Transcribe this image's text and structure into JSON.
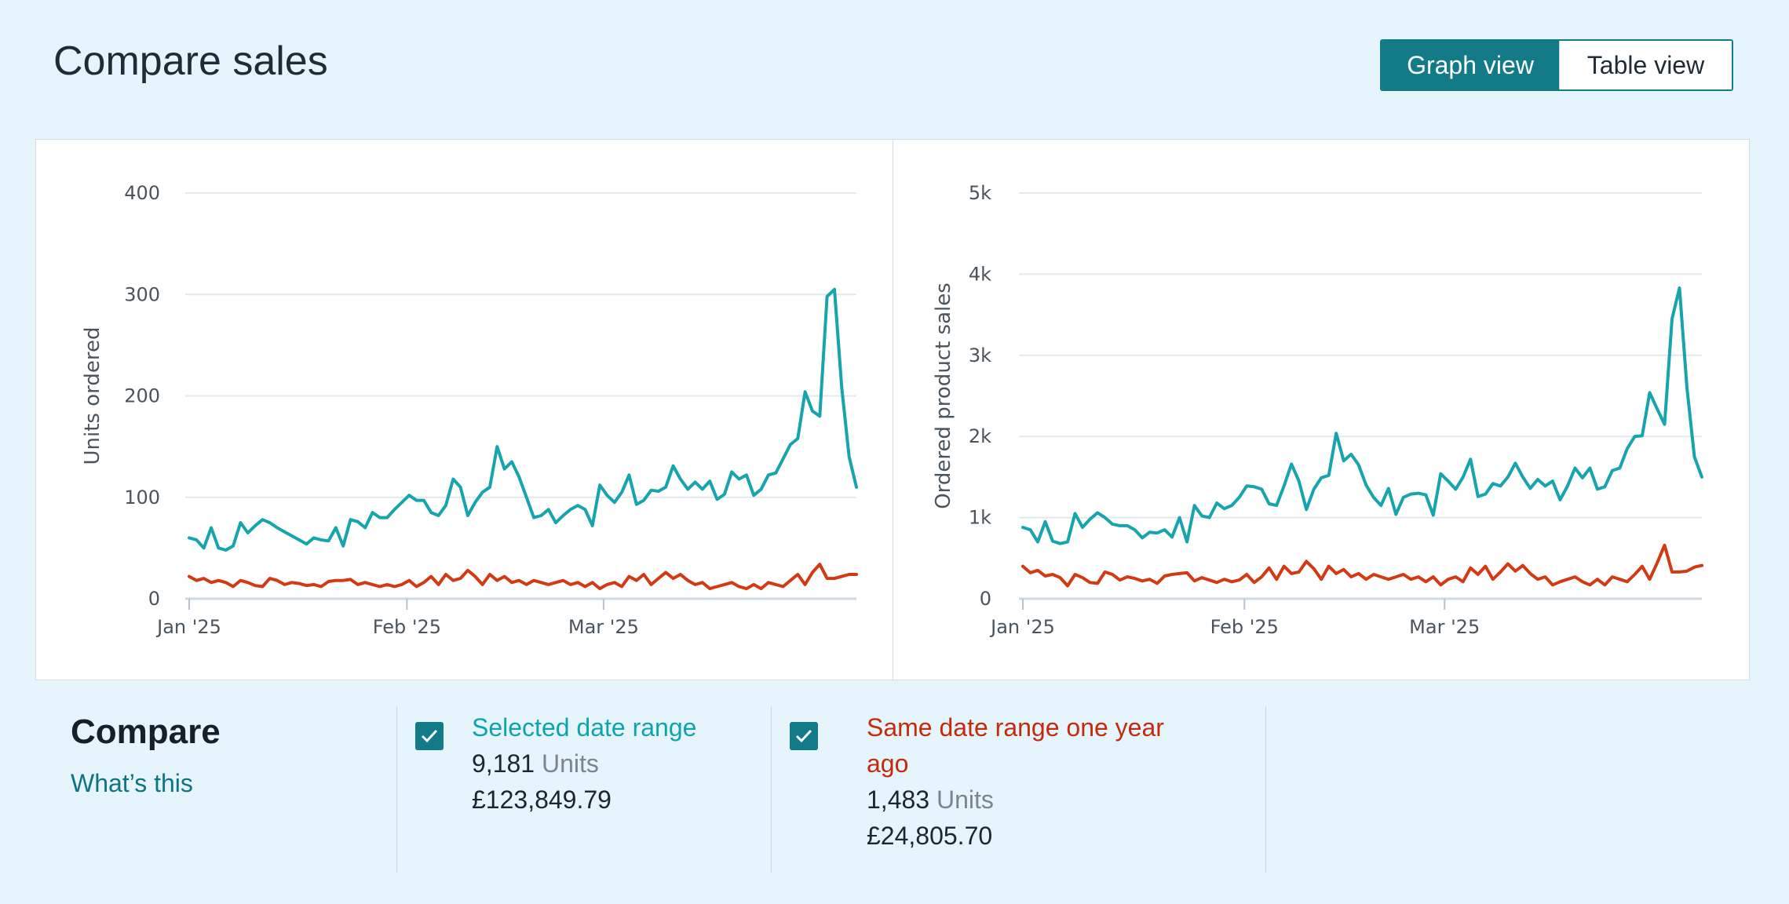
{
  "header": {
    "title": "Compare sales"
  },
  "view_toggle": {
    "graph_label": "Graph view",
    "table_label": "Table view",
    "active": "graph"
  },
  "colors": {
    "selected": "#17a4ad",
    "previous": "#d23a14",
    "accent": "#137a87",
    "background": "#e6f4fb"
  },
  "chart_data": [
    {
      "type": "line",
      "title": "",
      "ylabel": "Units ordered",
      "ylim": [
        0,
        400
      ],
      "y_ticks": [
        0,
        100,
        200,
        300,
        400
      ],
      "y_tick_labels": [
        "0",
        "100",
        "200",
        "300",
        "400"
      ],
      "x_tick_labels": [
        "Jan '25",
        "Feb '25",
        "Mar '25"
      ],
      "x_tick_days": [
        0,
        31,
        59
      ],
      "x_range_days": [
        0,
        95
      ],
      "series": [
        {
          "name": "Selected date range",
          "color": "#17a4ad",
          "values": [
            60,
            58,
            50,
            70,
            50,
            48,
            52,
            75,
            65,
            72,
            78,
            75,
            70,
            66,
            62,
            58,
            54,
            60,
            58,
            57,
            70,
            52,
            78,
            76,
            70,
            85,
            80,
            80,
            88,
            95,
            102,
            97,
            97,
            85,
            82,
            92,
            118,
            110,
            82,
            95,
            105,
            110,
            150,
            128,
            135,
            120,
            100,
            80,
            82,
            88,
            75,
            82,
            88,
            92,
            88,
            72,
            112,
            102,
            95,
            105,
            122,
            93,
            97,
            107,
            106,
            110,
            131,
            118,
            108,
            115,
            108,
            116,
            98,
            103,
            125,
            118,
            122,
            102,
            108,
            122,
            124,
            138,
            152,
            158,
            204,
            185,
            180,
            298,
            305,
            208,
            140,
            110
          ]
        },
        {
          "name": "Same date range one year ago",
          "color": "#d23a14",
          "values": [
            22,
            18,
            20,
            16,
            18,
            16,
            12,
            18,
            16,
            13,
            12,
            20,
            18,
            14,
            16,
            15,
            13,
            14,
            12,
            17,
            18,
            18,
            19,
            14,
            16,
            14,
            12,
            14,
            12,
            14,
            18,
            12,
            16,
            22,
            14,
            24,
            18,
            20,
            28,
            22,
            14,
            24,
            18,
            22,
            16,
            18,
            14,
            18,
            16,
            14,
            16,
            18,
            14,
            16,
            12,
            16,
            10,
            14,
            16,
            12,
            22,
            18,
            24,
            14,
            20,
            26,
            20,
            24,
            18,
            14,
            16,
            10,
            12,
            14,
            16,
            12,
            10,
            14,
            10,
            16,
            14,
            12,
            18,
            24,
            14,
            26,
            34,
            20,
            20,
            22,
            24,
            24
          ]
        }
      ]
    },
    {
      "type": "line",
      "title": "",
      "ylabel": "Ordered product sales",
      "ylim": [
        0,
        5000
      ],
      "y_ticks": [
        0,
        1000,
        2000,
        3000,
        4000,
        5000
      ],
      "y_tick_labels": [
        "0",
        "1k",
        "2k",
        "3k",
        "4k",
        "5k"
      ],
      "x_tick_labels": [
        "Jan '25",
        "Feb '25",
        "Mar '25"
      ],
      "x_tick_days": [
        0,
        31,
        59
      ],
      "x_range_days": [
        0,
        95
      ],
      "series": [
        {
          "name": "Selected date range",
          "color": "#17a4ad",
          "values": [
            880,
            850,
            700,
            950,
            710,
            680,
            700,
            1050,
            880,
            980,
            1060,
            1000,
            920,
            900,
            900,
            850,
            750,
            820,
            810,
            850,
            760,
            1000,
            700,
            1150,
            1020,
            1000,
            1180,
            1110,
            1150,
            1250,
            1390,
            1380,
            1350,
            1170,
            1150,
            1390,
            1660,
            1450,
            1100,
            1350,
            1490,
            1520,
            2040,
            1700,
            1780,
            1650,
            1400,
            1250,
            1150,
            1360,
            1040,
            1250,
            1290,
            1300,
            1280,
            1030,
            1540,
            1450,
            1350,
            1500,
            1720,
            1260,
            1290,
            1420,
            1390,
            1500,
            1670,
            1500,
            1360,
            1470,
            1390,
            1450,
            1220,
            1390,
            1610,
            1490,
            1610,
            1350,
            1380,
            1580,
            1610,
            1850,
            2000,
            2010,
            2540,
            2340,
            2150,
            3450,
            3830,
            2600,
            1750,
            1500
          ]
        },
        {
          "name": "Same date range one year ago",
          "color": "#d23a14",
          "values": [
            400,
            320,
            350,
            280,
            300,
            260,
            160,
            300,
            260,
            200,
            190,
            330,
            300,
            230,
            270,
            250,
            220,
            240,
            190,
            280,
            300,
            310,
            320,
            220,
            260,
            230,
            200,
            240,
            210,
            230,
            300,
            200,
            270,
            380,
            240,
            400,
            310,
            330,
            460,
            370,
            240,
            400,
            310,
            360,
            270,
            310,
            240,
            300,
            270,
            240,
            270,
            300,
            240,
            270,
            210,
            270,
            170,
            240,
            270,
            210,
            380,
            300,
            400,
            240,
            330,
            430,
            340,
            410,
            310,
            240,
            270,
            170,
            210,
            240,
            270,
            210,
            170,
            240,
            170,
            270,
            240,
            210,
            300,
            400,
            240,
            440,
            660,
            330,
            330,
            340,
            390,
            410
          ]
        }
      ]
    }
  ],
  "compare": {
    "title": "Compare",
    "whats_this": "What’s this",
    "selected": {
      "label": "Selected date range",
      "units_value": "9,181",
      "units_label": "Units",
      "sales": "£123,849.79",
      "checked": true
    },
    "previous": {
      "label": "Same date range one year ago",
      "units_value": "1,483",
      "units_label": "Units",
      "sales": "£24,805.70",
      "checked": true
    }
  }
}
